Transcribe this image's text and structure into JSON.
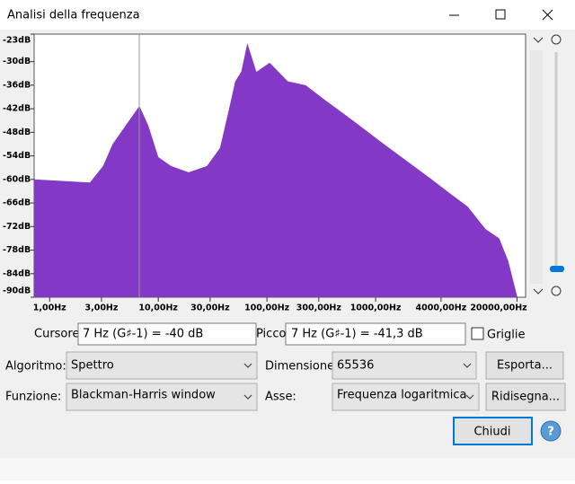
{
  "window": {
    "title": "Analisi della frequenza"
  },
  "chart_data": {
    "type": "area",
    "color": "#8439c6",
    "x_scale": "log",
    "x": [
      0.72,
      2.35,
      3.1,
      3.8,
      5.0,
      6.7,
      8.1,
      10,
      13.1,
      19,
      28,
      37,
      45,
      51,
      58,
      66,
      80,
      106,
      155,
      227,
      333,
      488,
      713,
      1045,
      1530,
      2240,
      3280,
      4800,
      7030,
      10300,
      13700,
      16600,
      20200
    ],
    "values": [
      -60,
      -60.8,
      -56.6,
      -51,
      -46.3,
      -41.3,
      -46.3,
      -54.3,
      -56.6,
      -58.2,
      -56.6,
      -52,
      -41.8,
      -35,
      -32.6,
      -25.3,
      -32.6,
      -30.3,
      -35,
      -36,
      -39.5,
      -42.9,
      -46.3,
      -49.8,
      -53.2,
      -56.6,
      -60,
      -63.5,
      -66.9,
      -72.7,
      -75,
      -80.7,
      -90
    ],
    "xlim": [
      0.72,
      24000
    ],
    "ylim": [
      -90,
      -23
    ],
    "xticks": [
      {
        "value": 1,
        "label": "1,00Hz"
      },
      {
        "value": 3,
        "label": "3,00Hz"
      },
      {
        "value": 10,
        "label": "10,00Hz"
      },
      {
        "value": 30,
        "label": "30,00Hz"
      },
      {
        "value": 100,
        "label": "100,00Hz"
      },
      {
        "value": 300,
        "label": "300,00Hz"
      },
      {
        "value": 1000,
        "label": "1000,00Hz"
      },
      {
        "value": 4000,
        "label": "4000,00Hz"
      },
      {
        "value": 20000,
        "label": "20000,00Hz"
      }
    ],
    "yticks": [
      {
        "value": -23,
        "label": "-23dB"
      },
      {
        "value": -30,
        "label": "-30dB"
      },
      {
        "value": -36,
        "label": "-36dB"
      },
      {
        "value": -42,
        "label": "-42dB"
      },
      {
        "value": -48,
        "label": "-48dB"
      },
      {
        "value": -54,
        "label": "-54dB"
      },
      {
        "value": -60,
        "label": "-60dB"
      },
      {
        "value": -66,
        "label": "-66dB"
      },
      {
        "value": -72,
        "label": "-72dB"
      },
      {
        "value": -78,
        "label": "-78dB"
      },
      {
        "value": -84,
        "label": "-84dB"
      },
      {
        "value": -90,
        "label": "-90dB"
      }
    ]
  },
  "controls": {
    "cursor_label": "Cursore:",
    "cursor_value": "7 Hz (G♯-1) = -40 dB",
    "peak_label": "Picco:",
    "peak_value": "7 Hz (G♯-1) = -41,3 dB",
    "grid_label": "Griglie",
    "algorithm_label": "Algoritmo:",
    "algorithm_value": "Spettro",
    "size_label": "Dimensione:",
    "size_value": "65536",
    "function_label": "Funzione:",
    "function_value": "Blackman-Harris window",
    "axis_label": "Asse:",
    "axis_value": "Frequenza logaritmica",
    "export_button": "Esporta...",
    "redraw_button": "Ridisegna...",
    "close_button": "Chiudi",
    "help_button": "?"
  }
}
